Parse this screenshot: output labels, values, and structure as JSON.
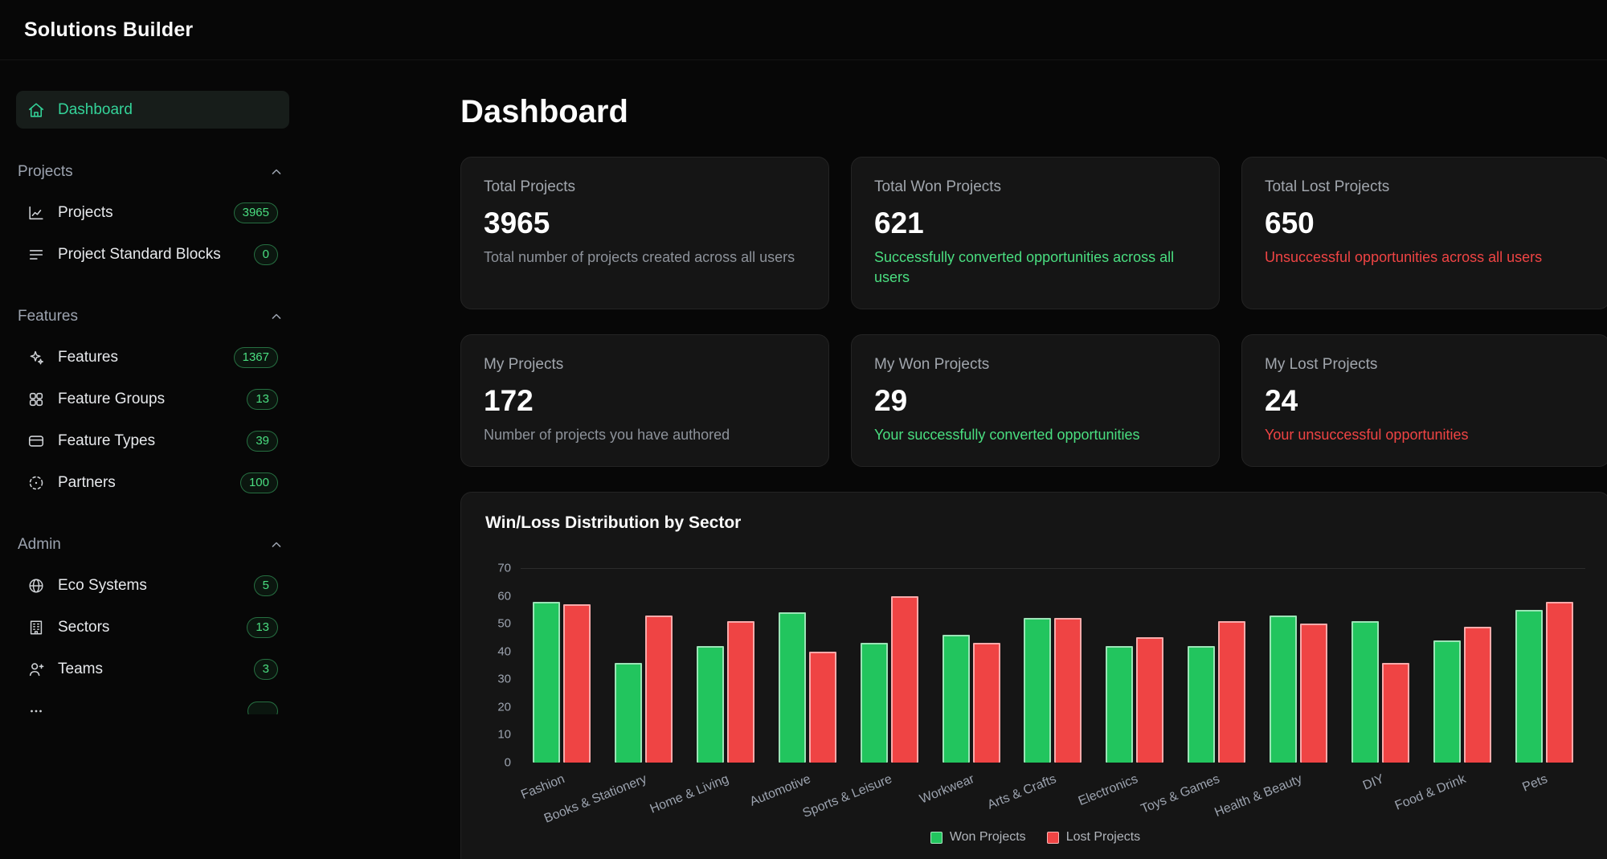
{
  "app": {
    "title": "Solutions Builder"
  },
  "colors": {
    "accent_green": "#34d399",
    "badge_green": "#4ade80",
    "positive_text": "#4ade80",
    "negative_text": "#ef4444",
    "won_bar": "#22c55e",
    "lost_bar": "#ef4444",
    "card_background": "#151515",
    "page_background": "#070707"
  },
  "sidebar": {
    "dashboard": {
      "label": "Dashboard"
    },
    "sections": [
      {
        "label": "Projects",
        "items": [
          {
            "label": "Projects",
            "badge": "3965"
          },
          {
            "label": "Project Standard Blocks",
            "badge": "0"
          }
        ]
      },
      {
        "label": "Features",
        "items": [
          {
            "label": "Features",
            "badge": "1367"
          },
          {
            "label": "Feature Groups",
            "badge": "13"
          },
          {
            "label": "Feature Types",
            "badge": "39"
          },
          {
            "label": "Partners",
            "badge": "100"
          }
        ]
      },
      {
        "label": "Admin",
        "items": [
          {
            "label": "Eco Systems",
            "badge": "5"
          },
          {
            "label": "Sectors",
            "badge": "13"
          },
          {
            "label": "Teams",
            "badge": "3"
          }
        ]
      }
    ]
  },
  "main": {
    "title": "Dashboard",
    "stat_cards": [
      {
        "label": "Total Projects",
        "value": "3965",
        "description": "Total number of projects created across all users",
        "tone": "neutral"
      },
      {
        "label": "Total Won Projects",
        "value": "621",
        "description": "Successfully converted opportunities across all users",
        "tone": "positive"
      },
      {
        "label": "Total Lost Projects",
        "value": "650",
        "description": "Unsuccessful opportunities across all users",
        "tone": "negative"
      },
      {
        "label": "My Projects",
        "value": "172",
        "description": "Number of projects you have authored",
        "tone": "neutral"
      },
      {
        "label": "My Won Projects",
        "value": "29",
        "description": "Your successfully converted opportunities",
        "tone": "positive"
      },
      {
        "label": "My Lost Projects",
        "value": "24",
        "description": "Your unsuccessful opportunities",
        "tone": "negative"
      }
    ]
  },
  "chart_data": {
    "type": "bar",
    "title": "Win/Loss Distribution by Sector",
    "categories": [
      "Fashion",
      "Books & Stationery",
      "Home & Living",
      "Automotive",
      "Sports & Leisure",
      "Workwear",
      "Arts & Crafts",
      "Electronics",
      "Toys & Games",
      "Health & Beauty",
      "DIY",
      "Food & Drink",
      "Pets"
    ],
    "series": [
      {
        "name": "Won Projects",
        "color": "#22c55e",
        "values": [
          58,
          36,
          42,
          54,
          43,
          46,
          52,
          42,
          42,
          53,
          51,
          44,
          55
        ]
      },
      {
        "name": "Lost Projects",
        "color": "#ef4444",
        "values": [
          57,
          53,
          51,
          40,
          60,
          43,
          52,
          45,
          51,
          50,
          36,
          49,
          58
        ]
      }
    ],
    "ylim": [
      0,
      70
    ],
    "yticks": [
      0,
      10,
      20,
      30,
      40,
      50,
      60,
      70
    ],
    "xlabel": "",
    "ylabel": "",
    "grid": false,
    "legend_position": "bottom"
  }
}
